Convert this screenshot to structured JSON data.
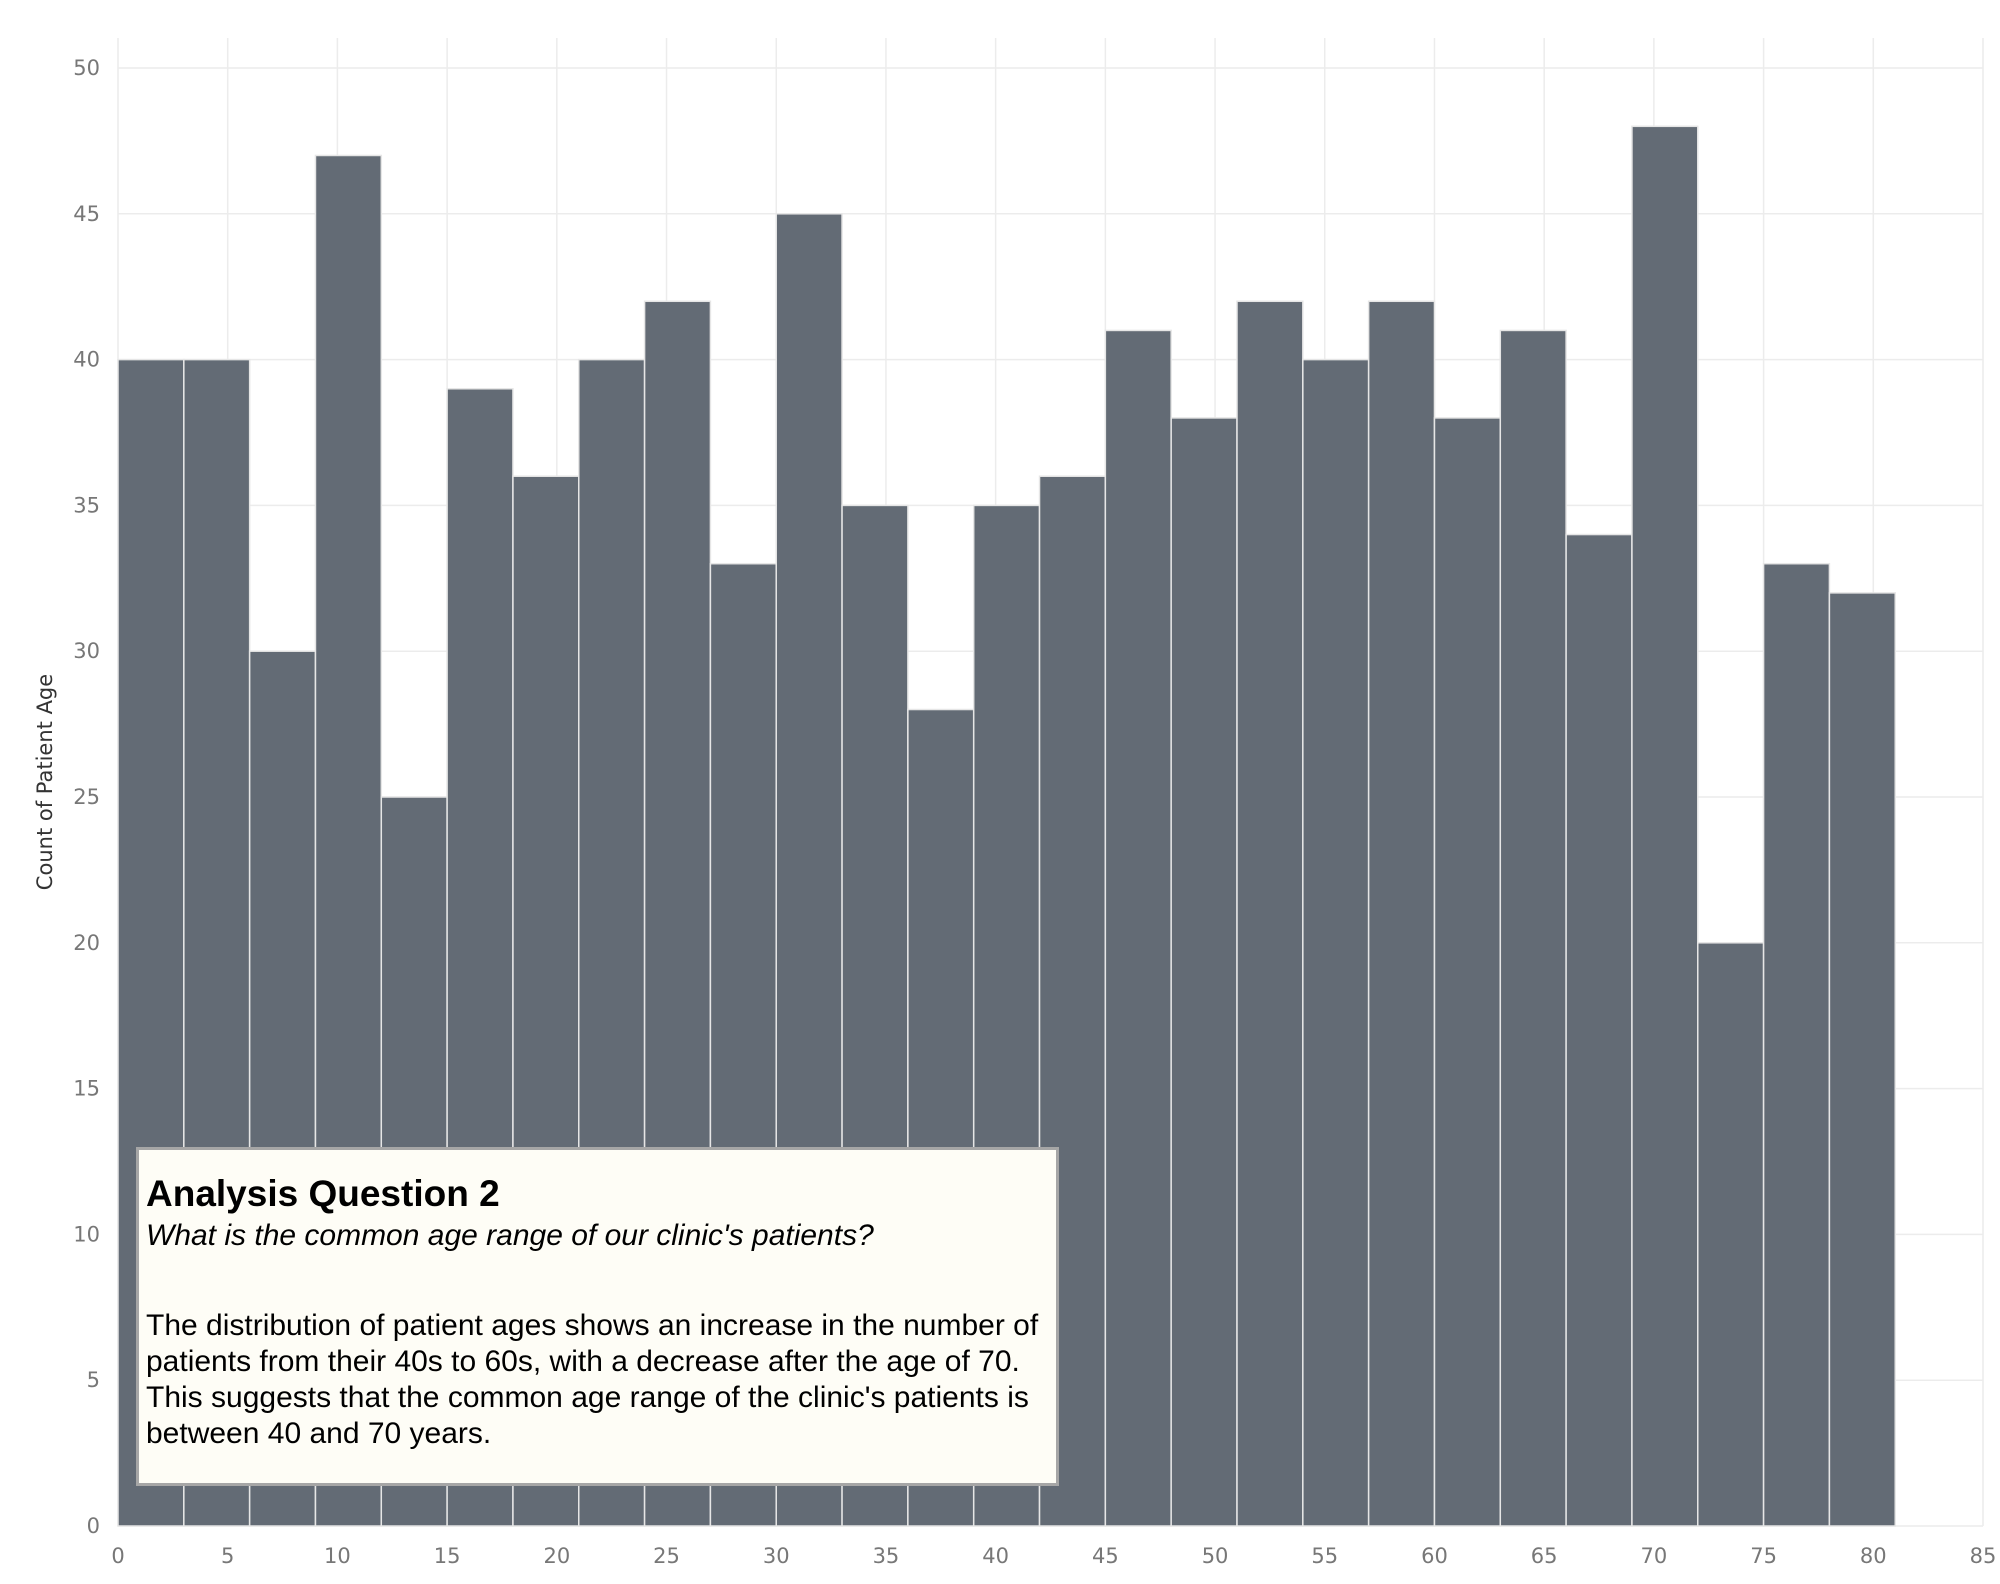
{
  "chart_data": {
    "type": "bar",
    "ylabel": "Count of Patient Age",
    "xlabel": "",
    "bin_width": 3,
    "bins_start": [
      0,
      3,
      6,
      9,
      12,
      15,
      18,
      21,
      24,
      27,
      30,
      33,
      36,
      39,
      42,
      45,
      48,
      51,
      54,
      57,
      60,
      63,
      66,
      69,
      72,
      75,
      78
    ],
    "values": [
      40,
      40,
      30,
      47,
      25,
      39,
      36,
      40,
      42,
      33,
      45,
      35,
      28,
      35,
      36,
      41,
      38,
      42,
      40,
      42,
      38,
      41,
      34,
      48,
      20,
      33,
      32
    ],
    "xlim": [
      0,
      85
    ],
    "ylim": [
      0,
      50
    ],
    "x_ticks": [
      "0",
      "5",
      "10",
      "15",
      "20",
      "25",
      "30",
      "35",
      "40",
      "45",
      "50",
      "55",
      "60",
      "65",
      "70",
      "75",
      "80",
      "85"
    ],
    "y_ticks": [
      "0",
      "5",
      "10",
      "15",
      "20",
      "25",
      "30",
      "35",
      "40",
      "45",
      "50"
    ],
    "grid": true,
    "colors": {
      "bar": "#636b75",
      "bar_edge": "#e6e6e6",
      "grid": "#ececec"
    }
  },
  "annotation": {
    "title": "Analysis Question 2",
    "question": "What is the common age range of our clinic's patients?",
    "body": "The distribution of patient ages shows an increase in the number of patients from their 40s to 60s, with a decrease after the age of 70. This suggests that the common age range of the clinic's patients is between 40 and 70 years."
  }
}
